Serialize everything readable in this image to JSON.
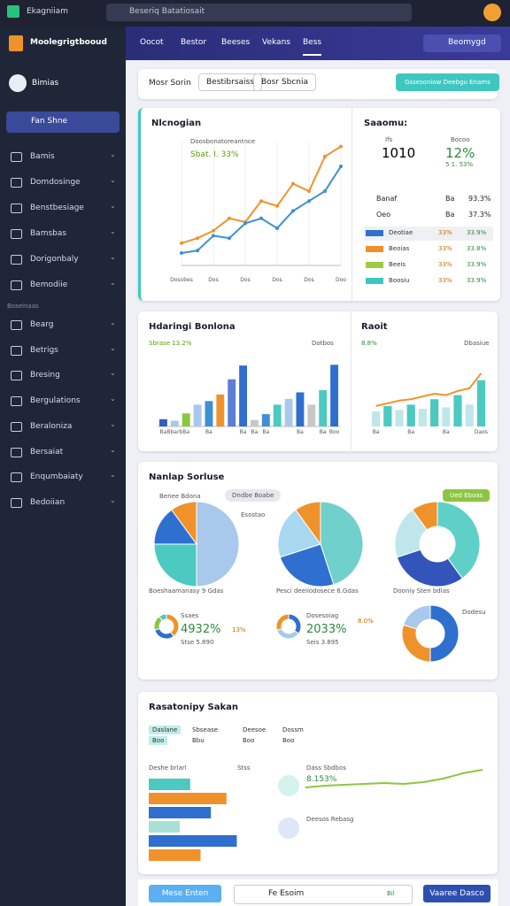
{
  "browser": {
    "title": "Ekagniiam",
    "address": "Beseriq Batatiosait"
  },
  "sidebar": {
    "brand": "Moolegrigtbooud",
    "workspace": "Bimias",
    "active": "Fan Shne",
    "items": [
      "Bamis",
      "Domdosinge",
      "Benstbesiage",
      "Bamsbas",
      "Dorigonbaly",
      "Bemodiie"
    ],
    "section": "Boseinaas",
    "items2": [
      "Bearg",
      "Betrigs",
      "Bresing",
      "Bergulations",
      "Beraloniza",
      "Bersaiat",
      "Enqumbaiaty",
      "Bedoiian"
    ]
  },
  "nav": {
    "tabs": [
      "Oocot",
      "Bestor",
      "Beeses",
      "Vekans",
      "Bess"
    ],
    "button": "Beomygd"
  },
  "filters": {
    "labels": [
      "Mosr Sorin",
      "Bestibrsaiss",
      "Bosr Sbcnia"
    ],
    "button": "Gssesoniow Deebgu Enams"
  },
  "overview": {
    "title": "Nlcnogian",
    "legend": "Doosbonatoreantoce",
    "kpi": "Sbat. I. 33%",
    "line_chart": {
      "type": "line",
      "x": [
        0,
        1,
        2,
        3,
        4,
        5,
        6,
        7,
        8,
        9,
        10
      ],
      "xlim": [
        0,
        10
      ],
      "xticks": [
        {
          "value": 0,
          "label": "Dosobes"
        },
        {
          "value": 2,
          "label": "Dos"
        },
        {
          "value": 4,
          "label": "Dos"
        },
        {
          "value": 6,
          "label": "Dos"
        },
        {
          "value": 8,
          "label": "Dos"
        },
        {
          "value": 10,
          "label": "Doo"
        }
      ],
      "ylim": [
        0,
        100
      ],
      "series": [
        {
          "color": "#f0922b",
          "values": [
            18,
            22,
            28,
            38,
            35,
            52,
            48,
            66,
            60,
            88,
            96
          ]
        },
        {
          "color": "#3d8fd6",
          "values": [
            10,
            12,
            24,
            22,
            34,
            38,
            30,
            44,
            52,
            60,
            80
          ]
        }
      ]
    }
  },
  "stats": {
    "title": "Saaomu:",
    "kpis": [
      {
        "label": "Ifs",
        "value": "1010"
      },
      {
        "label": "Bocoo",
        "value": "12%",
        "sub": "5 1. 53%"
      }
    ],
    "rows": [
      [
        "Banaf",
        "Ba",
        "93.3%"
      ],
      [
        "Oeo",
        "Ba",
        "37.3%"
      ]
    ],
    "bars": [
      {
        "name": "Deotiae",
        "value": "33%",
        "pct": "33.9%",
        "color": "#2f6fd0"
      },
      {
        "name": "Beoias",
        "value": "33%",
        "pct": "33.8%",
        "color": "#f0922b"
      },
      {
        "name": "Beeis",
        "value": "33%",
        "pct": "33.9%",
        "color": "#9ccc3f"
      },
      {
        "name": "Boosiu",
        "value": "33%",
        "pct": "33.9%",
        "color": "#3ec7c0"
      }
    ]
  },
  "bars_card": {
    "title": "Hdaringi Bonlona",
    "kpi": "Sbrase 13.2%",
    "legend": "Dotbos",
    "chart": {
      "type": "bar",
      "categories": [
        "Ba",
        "Bbarb",
        "Ba",
        null,
        "Ba",
        null,
        null,
        "Ba",
        "Ba",
        "Ba",
        null,
        null,
        "Ba",
        null,
        "Ba",
        "Boo"
      ],
      "values": [
        10,
        8,
        18,
        30,
        35,
        44,
        65,
        84,
        9,
        17,
        30,
        38,
        47,
        30,
        50,
        85
      ],
      "colors": [
        "#2f5fc4",
        "#a8c8ec",
        "#8cc63f",
        "#a8c8ec",
        "#3d8fd6",
        "#f0922b",
        "#5a7fd6",
        "#2f6fd0",
        "#c8c8c8",
        "#3d8fd6",
        "#4cc9c0",
        "#a8c8ec",
        "#2f6fd0",
        "#c8c8c8",
        "#4cc9c0",
        "#2f6fd0"
      ],
      "ylim": [
        0,
        100
      ]
    }
  },
  "combo_card": {
    "title": "Raoit",
    "kpi": "8.8%",
    "legend": "Dbasiue",
    "chart": {
      "type": "bar",
      "categories": [
        "Ba",
        null,
        null,
        "Ba",
        null,
        null,
        "Ba",
        null,
        null,
        "Daos"
      ],
      "bars": [
        22,
        30,
        24,
        32,
        26,
        40,
        28,
        46,
        32,
        68
      ],
      "line": [
        30,
        34,
        38,
        40,
        44,
        48,
        46,
        52,
        56,
        78
      ],
      "ylim": [
        0,
        100
      ]
    }
  },
  "pies_card": {
    "title": "Nanlap Sorluse",
    "legend": "Benee Bdona",
    "tab": "Dndbe Boabe",
    "badge": "Ued Eboas",
    "pies": [
      {
        "type": "pie",
        "label": "Boeshaamanasy 9 Gdas",
        "note": "Esostao",
        "values": [
          50,
          25,
          15,
          10
        ],
        "colors": [
          "#a8c8ec",
          "#4cc9c0",
          "#2f6fd0",
          "#f0922b"
        ]
      },
      {
        "type": "pie",
        "label": "Pesci deeiiodosece 6.Gdas",
        "values": [
          45,
          25,
          20,
          10
        ],
        "colors": [
          "#6fd0cc",
          "#2f6fd0",
          "#a8d8f0",
          "#f0922b"
        ]
      },
      {
        "type": "pie",
        "label": "Dooniy Sten bdlas",
        "values": [
          40,
          30,
          20,
          10
        ],
        "colors": [
          "#5fd0c8",
          "#3355bb",
          "#bfe6ea",
          "#f0922b"
        ]
      }
    ],
    "donuts": [
      {
        "type": "pie",
        "title": "Ssaes",
        "value": "4932%",
        "side": "13%",
        "note": "Stse 5.890",
        "values": [
          40,
          30,
          20,
          10
        ],
        "colors": [
          "#f0922b",
          "#2f6fd0",
          "#8cc63f",
          "#4cc9c0"
        ]
      },
      {
        "type": "pie",
        "title": "Dosesoiag",
        "value": "2033%",
        "side": "8.0%",
        "note": "Seis 3.895",
        "values": [
          35,
          35,
          30
        ],
        "colors": [
          "#2f6fd0",
          "#a8c8ec",
          "#f0922b"
        ]
      },
      {
        "type": "pie",
        "title": "Dodesu",
        "values": [
          50,
          30,
          20
        ],
        "colors": [
          "#2f6fd0",
          "#f0922b",
          "#a8c8ec"
        ]
      }
    ]
  },
  "report_card": {
    "title": "Rasatonipy Sakan",
    "tabs": [
      [
        "Daslane",
        "Boo"
      ],
      [
        "Sbsease",
        "Bbu"
      ],
      [
        "Deesoe",
        "Boo"
      ],
      [
        "Dossm",
        "Boo"
      ]
    ],
    "left_title": "Deshe brlarl",
    "left_note": "Stss",
    "bars": {
      "type": "bar",
      "values": [
        40,
        75,
        60,
        30,
        85,
        50
      ],
      "colors": [
        "#4cc9c0",
        "#f0922b",
        "#2f6fd0",
        "#a8e0d8",
        "#2f6fd0",
        "#f0922b"
      ],
      "xlim": [
        0,
        100
      ]
    },
    "right_title": "Dass Sbdbos",
    "right_kpi": "8.153%",
    "right_note": "Deesos Rebasg",
    "line": {
      "type": "line",
      "values": [
        30,
        34,
        36,
        38,
        40,
        38,
        42,
        50,
        62,
        70
      ],
      "ylim": [
        0,
        100
      ],
      "color": "#8cc63f"
    }
  },
  "footer": {
    "left": "Mese Enten",
    "input": "Fe Esoim",
    "tag": "Bil",
    "right": "Vaaree Dasco"
  }
}
